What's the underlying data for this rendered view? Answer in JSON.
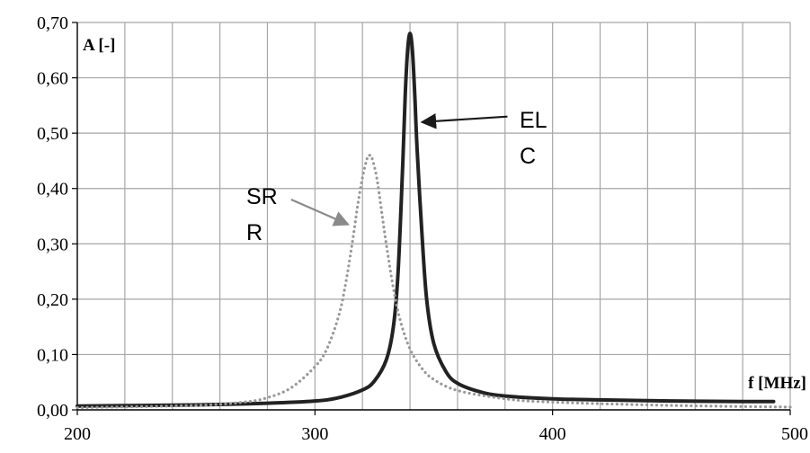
{
  "chart_data": {
    "type": "line",
    "title": "",
    "xlabel": "f [MHz]",
    "ylabel": "A [-]",
    "xlim": [
      200,
      500
    ],
    "ylim": [
      0,
      0.7
    ],
    "x_ticks": [
      200,
      300,
      400,
      500
    ],
    "x_tick_labels": [
      "200",
      "300",
      "400",
      "500"
    ],
    "y_ticks": [
      0,
      0.1,
      0.2,
      0.3,
      0.4,
      0.5,
      0.6,
      0.7
    ],
    "y_tick_labels": [
      "0,00",
      "0,10",
      "0,20",
      "0,30",
      "0,40",
      "0,50",
      "0,60",
      "0,70"
    ],
    "grid": true,
    "x_minor_grid_step": 20,
    "y_grid_step": 0.1,
    "series": [
      {
        "color": "#222222",
        "style": "solid",
        "x": [
          200,
          250,
          280,
          300,
          310,
          320,
          325,
          330,
          333,
          335,
          337,
          338,
          339,
          340,
          341,
          342,
          343,
          345,
          347,
          350,
          355,
          360,
          370,
          380,
          400,
          420,
          450,
          480,
          493
        ],
        "y": [
          0.007,
          0.009,
          0.012,
          0.016,
          0.022,
          0.036,
          0.052,
          0.09,
          0.15,
          0.25,
          0.45,
          0.57,
          0.65,
          0.68,
          0.65,
          0.57,
          0.47,
          0.32,
          0.2,
          0.12,
          0.07,
          0.048,
          0.032,
          0.025,
          0.02,
          0.018,
          0.016,
          0.015,
          0.015
        ]
      },
      {
        "color": "#999999",
        "style": "dotted",
        "x": [
          200,
          250,
          270,
          280,
          290,
          300,
          305,
          310,
          313,
          316,
          318,
          320,
          322,
          323,
          324,
          326,
          328,
          330,
          333,
          336,
          340,
          345,
          350,
          360,
          380,
          400,
          450,
          500
        ],
        "y": [
          0.004,
          0.008,
          0.014,
          0.022,
          0.04,
          0.078,
          0.11,
          0.17,
          0.23,
          0.31,
          0.37,
          0.42,
          0.455,
          0.46,
          0.455,
          0.42,
          0.36,
          0.3,
          0.22,
          0.16,
          0.11,
          0.075,
          0.055,
          0.035,
          0.02,
          0.014,
          0.008,
          0.005
        ]
      }
    ],
    "annotations": [
      {
        "text_lines": [
          "EL",
          "C"
        ],
        "arrow_tail": [
          381,
          0.53
        ],
        "arrow_head": [
          345,
          0.52
        ]
      },
      {
        "text_lines": [
          "SR",
          "R"
        ],
        "arrow_tail": [
          290,
          0.38
        ],
        "arrow_head": [
          314,
          0.335
        ]
      }
    ]
  }
}
